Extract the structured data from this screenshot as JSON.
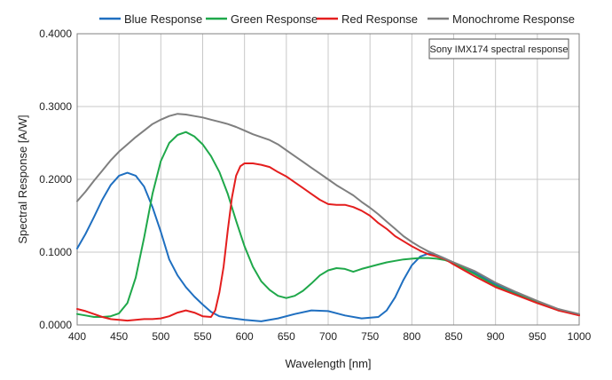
{
  "chart_data": {
    "type": "line",
    "xlabel": "Wavelength [nm]",
    "ylabel": "Spectral Response [A/W]",
    "xlim": [
      400,
      1000
    ],
    "ylim": [
      0,
      0.4
    ],
    "xticks": [
      "400",
      "450",
      "500",
      "550",
      "600",
      "650",
      "700",
      "750",
      "800",
      "850",
      "900",
      "950",
      "1000"
    ],
    "yticks": [
      "0.0000",
      "0.1000",
      "0.2000",
      "0.3000",
      "0.4000"
    ],
    "grid": true,
    "legend_position": "top",
    "annotation": "Sony IMX174 spectral response",
    "series": [
      {
        "name": "Blue Response",
        "color": "#1f6fc0",
        "points": [
          [
            400,
            0.105
          ],
          [
            410,
            0.125
          ],
          [
            420,
            0.148
          ],
          [
            430,
            0.172
          ],
          [
            440,
            0.192
          ],
          [
            450,
            0.205
          ],
          [
            460,
            0.209
          ],
          [
            470,
            0.205
          ],
          [
            480,
            0.19
          ],
          [
            490,
            0.162
          ],
          [
            500,
            0.128
          ],
          [
            510,
            0.09
          ],
          [
            520,
            0.068
          ],
          [
            530,
            0.052
          ],
          [
            540,
            0.039
          ],
          [
            550,
            0.028
          ],
          [
            560,
            0.018
          ],
          [
            570,
            0.012
          ],
          [
            580,
            0.01
          ],
          [
            600,
            0.007
          ],
          [
            620,
            0.005
          ],
          [
            640,
            0.009
          ],
          [
            660,
            0.015
          ],
          [
            680,
            0.02
          ],
          [
            700,
            0.019
          ],
          [
            720,
            0.013
          ],
          [
            740,
            0.009
          ],
          [
            760,
            0.011
          ],
          [
            770,
            0.02
          ],
          [
            780,
            0.038
          ],
          [
            790,
            0.062
          ],
          [
            800,
            0.082
          ],
          [
            810,
            0.094
          ],
          [
            820,
            0.098
          ],
          [
            830,
            0.096
          ],
          [
            840,
            0.091
          ],
          [
            850,
            0.085
          ],
          [
            875,
            0.072
          ],
          [
            900,
            0.056
          ],
          [
            925,
            0.044
          ],
          [
            950,
            0.032
          ],
          [
            975,
            0.021
          ],
          [
            1000,
            0.014
          ]
        ]
      },
      {
        "name": "Green Response",
        "color": "#1fa84a",
        "points": [
          [
            400,
            0.015
          ],
          [
            410,
            0.013
          ],
          [
            420,
            0.011
          ],
          [
            430,
            0.011
          ],
          [
            440,
            0.012
          ],
          [
            450,
            0.016
          ],
          [
            460,
            0.03
          ],
          [
            470,
            0.065
          ],
          [
            480,
            0.12
          ],
          [
            490,
            0.18
          ],
          [
            500,
            0.225
          ],
          [
            510,
            0.25
          ],
          [
            520,
            0.261
          ],
          [
            530,
            0.265
          ],
          [
            540,
            0.259
          ],
          [
            550,
            0.248
          ],
          [
            560,
            0.232
          ],
          [
            570,
            0.21
          ],
          [
            580,
            0.18
          ],
          [
            590,
            0.143
          ],
          [
            600,
            0.108
          ],
          [
            610,
            0.08
          ],
          [
            620,
            0.06
          ],
          [
            630,
            0.048
          ],
          [
            640,
            0.04
          ],
          [
            650,
            0.037
          ],
          [
            660,
            0.04
          ],
          [
            670,
            0.047
          ],
          [
            680,
            0.057
          ],
          [
            690,
            0.068
          ],
          [
            700,
            0.075
          ],
          [
            710,
            0.078
          ],
          [
            720,
            0.077
          ],
          [
            730,
            0.073
          ],
          [
            740,
            0.077
          ],
          [
            750,
            0.08
          ],
          [
            760,
            0.083
          ],
          [
            770,
            0.086
          ],
          [
            780,
            0.088
          ],
          [
            790,
            0.09
          ],
          [
            800,
            0.091
          ],
          [
            810,
            0.092
          ],
          [
            820,
            0.092
          ],
          [
            830,
            0.091
          ],
          [
            840,
            0.089
          ],
          [
            850,
            0.085
          ],
          [
            875,
            0.07
          ],
          [
            900,
            0.054
          ],
          [
            925,
            0.042
          ],
          [
            950,
            0.031
          ],
          [
            975,
            0.02
          ],
          [
            1000,
            0.014
          ]
        ]
      },
      {
        "name": "Red Response",
        "color": "#e41e1e",
        "points": [
          [
            400,
            0.022
          ],
          [
            410,
            0.019
          ],
          [
            420,
            0.015
          ],
          [
            430,
            0.011
          ],
          [
            440,
            0.008
          ],
          [
            450,
            0.007
          ],
          [
            460,
            0.006
          ],
          [
            470,
            0.007
          ],
          [
            480,
            0.008
          ],
          [
            490,
            0.008
          ],
          [
            500,
            0.009
          ],
          [
            510,
            0.012
          ],
          [
            520,
            0.017
          ],
          [
            530,
            0.02
          ],
          [
            540,
            0.017
          ],
          [
            550,
            0.012
          ],
          [
            560,
            0.011
          ],
          [
            565,
            0.02
          ],
          [
            570,
            0.045
          ],
          [
            575,
            0.08
          ],
          [
            580,
            0.13
          ],
          [
            585,
            0.175
          ],
          [
            590,
            0.205
          ],
          [
            595,
            0.218
          ],
          [
            600,
            0.222
          ],
          [
            610,
            0.222
          ],
          [
            620,
            0.22
          ],
          [
            630,
            0.217
          ],
          [
            640,
            0.21
          ],
          [
            650,
            0.204
          ],
          [
            660,
            0.196
          ],
          [
            670,
            0.188
          ],
          [
            680,
            0.18
          ],
          [
            690,
            0.172
          ],
          [
            700,
            0.166
          ],
          [
            710,
            0.165
          ],
          [
            720,
            0.165
          ],
          [
            730,
            0.162
          ],
          [
            740,
            0.157
          ],
          [
            750,
            0.15
          ],
          [
            760,
            0.14
          ],
          [
            770,
            0.132
          ],
          [
            780,
            0.122
          ],
          [
            790,
            0.115
          ],
          [
            800,
            0.108
          ],
          [
            810,
            0.102
          ],
          [
            820,
            0.097
          ],
          [
            830,
            0.094
          ],
          [
            840,
            0.09
          ],
          [
            850,
            0.083
          ],
          [
            875,
            0.067
          ],
          [
            900,
            0.052
          ],
          [
            925,
            0.041
          ],
          [
            950,
            0.03
          ],
          [
            975,
            0.02
          ],
          [
            1000,
            0.013
          ]
        ]
      },
      {
        "name": "Monochrome Response",
        "color": "#7f7f7f",
        "points": [
          [
            400,
            0.17
          ],
          [
            410,
            0.183
          ],
          [
            420,
            0.198
          ],
          [
            430,
            0.212
          ],
          [
            440,
            0.226
          ],
          [
            450,
            0.238
          ],
          [
            460,
            0.248
          ],
          [
            470,
            0.258
          ],
          [
            480,
            0.267
          ],
          [
            490,
            0.276
          ],
          [
            500,
            0.282
          ],
          [
            510,
            0.287
          ],
          [
            520,
            0.29
          ],
          [
            530,
            0.289
          ],
          [
            540,
            0.287
          ],
          [
            550,
            0.285
          ],
          [
            560,
            0.282
          ],
          [
            570,
            0.279
          ],
          [
            580,
            0.276
          ],
          [
            590,
            0.272
          ],
          [
            600,
            0.267
          ],
          [
            610,
            0.262
          ],
          [
            620,
            0.258
          ],
          [
            630,
            0.254
          ],
          [
            640,
            0.248
          ],
          [
            650,
            0.24
          ],
          [
            660,
            0.232
          ],
          [
            670,
            0.224
          ],
          [
            680,
            0.216
          ],
          [
            690,
            0.208
          ],
          [
            700,
            0.2
          ],
          [
            710,
            0.192
          ],
          [
            720,
            0.185
          ],
          [
            730,
            0.178
          ],
          [
            740,
            0.169
          ],
          [
            750,
            0.161
          ],
          [
            760,
            0.152
          ],
          [
            770,
            0.142
          ],
          [
            780,
            0.132
          ],
          [
            790,
            0.122
          ],
          [
            800,
            0.114
          ],
          [
            810,
            0.107
          ],
          [
            820,
            0.101
          ],
          [
            830,
            0.096
          ],
          [
            840,
            0.091
          ],
          [
            850,
            0.086
          ],
          [
            875,
            0.074
          ],
          [
            900,
            0.058
          ],
          [
            925,
            0.045
          ],
          [
            950,
            0.033
          ],
          [
            975,
            0.022
          ],
          [
            1000,
            0.015
          ]
        ]
      }
    ]
  }
}
